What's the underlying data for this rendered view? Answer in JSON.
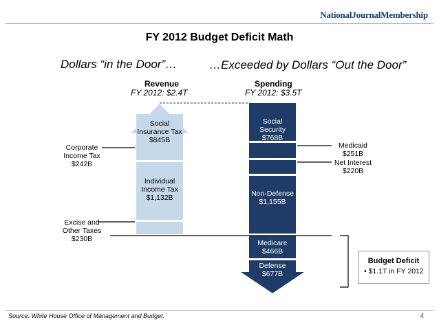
{
  "brand": "NationalJournalMembership",
  "title": "FY 2012 Budget Deficit Math",
  "subtitle_left": "Dollars “in the Door”…",
  "subtitle_right": "…Exceeded by Dollars “Out the Door”",
  "revenue": {
    "heading": "Revenue",
    "total": "FY 2012: $2.4T",
    "items": [
      {
        "name": "Social Insurance Tax",
        "value": "$845B",
        "amount": 845
      },
      {
        "name": "Individual Income Tax",
        "value": "$1,132B",
        "amount": 1132
      },
      {
        "name": "Corporate Income Tax",
        "value": "$242B",
        "amount": 242
      },
      {
        "name": "Excise and Other Taxes",
        "value": "$230B",
        "amount": 230
      }
    ]
  },
  "spending": {
    "heading": "Spending",
    "total": "FY 2012: $3.5T",
    "items": [
      {
        "name": "Social Security",
        "value": "$768B",
        "amount": 768
      },
      {
        "name": "Medicaid",
        "value": "$251B",
        "amount": 251
      },
      {
        "name": "Net Interest",
        "value": "$220B",
        "amount": 220
      },
      {
        "name": "Non-Defense",
        "value": "$1,155B",
        "amount": 1155
      },
      {
        "name": "Medicare",
        "value": "$466B",
        "amount": 466
      },
      {
        "name": "Defense",
        "value": "$677B",
        "amount": 677
      }
    ]
  },
  "deficit": {
    "heading": "Budget Deficit",
    "bullet": "$1.1T in FY 2012"
  },
  "source": "Source: White House Office of Management and Budget.",
  "page_number": "4",
  "colors": {
    "revenue_fill": "#c5d9ea",
    "spending_fill": "#1f3c68",
    "brand": "#1a3a63"
  }
}
